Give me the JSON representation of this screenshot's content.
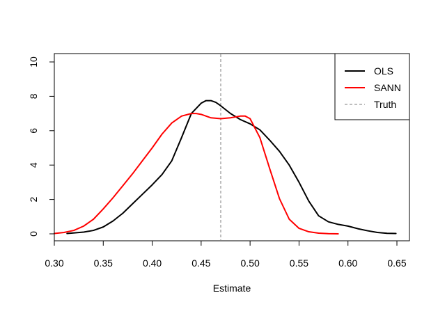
{
  "chart_data": {
    "type": "line",
    "title": "",
    "xlabel": "Estimate",
    "ylabel": "",
    "xlim": [
      0.3,
      0.65
    ],
    "ylim": [
      0,
      10
    ],
    "x_ticks": [
      0.3,
      0.35,
      0.4,
      0.45,
      0.5,
      0.55,
      0.6,
      0.65
    ],
    "x_tick_labels": [
      "0.30",
      "0.35",
      "0.40",
      "0.45",
      "0.50",
      "0.55",
      "0.60",
      "0.65"
    ],
    "y_ticks": [
      0,
      2,
      4,
      6,
      8,
      10
    ],
    "y_tick_labels": [
      "0",
      "2",
      "4",
      "6",
      "8",
      "10"
    ],
    "grid": false,
    "legend_position": "top-right",
    "series": [
      {
        "name": "OLS",
        "color": "#000000",
        "style": "solid",
        "x": [
          0.313,
          0.33,
          0.34,
          0.35,
          0.36,
          0.37,
          0.38,
          0.39,
          0.4,
          0.41,
          0.42,
          0.43,
          0.44,
          0.45,
          0.455,
          0.46,
          0.465,
          0.47,
          0.48,
          0.49,
          0.5,
          0.51,
          0.52,
          0.53,
          0.54,
          0.55,
          0.56,
          0.57,
          0.58,
          0.59,
          0.6,
          0.61,
          0.62,
          0.63,
          0.64,
          0.649
        ],
        "y": [
          0.02,
          0.1,
          0.2,
          0.4,
          0.75,
          1.2,
          1.75,
          2.3,
          2.85,
          3.45,
          4.25,
          5.6,
          7.0,
          7.6,
          7.75,
          7.75,
          7.65,
          7.45,
          7.0,
          6.65,
          6.4,
          6.05,
          5.45,
          4.8,
          4.0,
          3.0,
          1.9,
          1.05,
          0.7,
          0.55,
          0.45,
          0.3,
          0.18,
          0.08,
          0.03,
          0.02
        ]
      },
      {
        "name": "SANN",
        "color": "#ff0000",
        "style": "solid",
        "x": [
          0.3,
          0.31,
          0.32,
          0.33,
          0.34,
          0.35,
          0.36,
          0.37,
          0.38,
          0.39,
          0.4,
          0.41,
          0.42,
          0.43,
          0.44,
          0.445,
          0.45,
          0.46,
          0.47,
          0.48,
          0.49,
          0.495,
          0.5,
          0.51,
          0.52,
          0.53,
          0.54,
          0.55,
          0.56,
          0.57,
          0.58,
          0.59
        ],
        "y": [
          0.02,
          0.08,
          0.2,
          0.45,
          0.85,
          1.45,
          2.1,
          2.8,
          3.5,
          4.25,
          5.0,
          5.8,
          6.45,
          6.85,
          7.0,
          7.0,
          6.95,
          6.75,
          6.7,
          6.75,
          6.85,
          6.85,
          6.7,
          5.6,
          3.8,
          2.05,
          0.85,
          0.32,
          0.12,
          0.04,
          0.01,
          0.0
        ]
      }
    ],
    "reference_lines": [
      {
        "name": "Truth",
        "orientation": "vertical",
        "x": 0.47,
        "color": "#bebebe",
        "style": "dashed"
      }
    ],
    "legend": [
      {
        "label": "OLS",
        "color": "#000000",
        "style": "solid"
      },
      {
        "label": "SANN",
        "color": "#ff0000",
        "style": "solid"
      },
      {
        "label": "Truth",
        "color": "#bebebe",
        "style": "dashed"
      }
    ]
  }
}
